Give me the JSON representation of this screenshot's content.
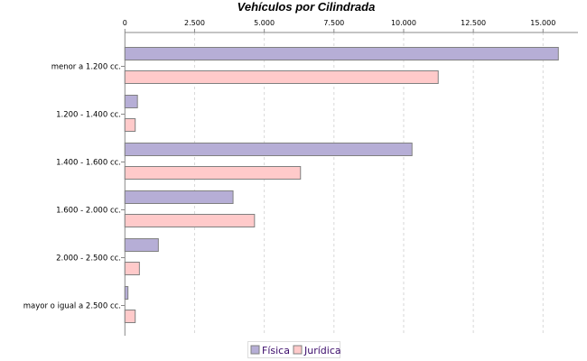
{
  "chart_data": {
    "type": "bar",
    "orientation": "horizontal",
    "title": "Vehículos por Cilindrada",
    "xlabel": "",
    "ylabel": "",
    "xlim": [
      0,
      16300
    ],
    "ticks": [
      0,
      2500,
      5000,
      7500,
      10000,
      12500,
      15000
    ],
    "tick_labels": [
      "0",
      "2.500",
      "5.000",
      "7.500",
      "10.000",
      "12.500",
      "15.000"
    ],
    "grid": true,
    "legend_position": "bottom",
    "categories": [
      "menor a 1.200 cc.",
      "1.200 - 1.400 cc.",
      "1.400 - 1.600 cc.",
      "1.600 - 2.000 cc.",
      "2.000 - 2.500 cc.",
      "mayor o igual a 2.500 cc."
    ],
    "series": [
      {
        "name": "Física",
        "color": "#b6aed6",
        "values": [
          15550,
          450,
          10300,
          3880,
          1200,
          110
        ]
      },
      {
        "name": "Jurídica",
        "color": "#ffcaca",
        "values": [
          11240,
          370,
          6300,
          4650,
          520,
          370
        ]
      }
    ]
  }
}
